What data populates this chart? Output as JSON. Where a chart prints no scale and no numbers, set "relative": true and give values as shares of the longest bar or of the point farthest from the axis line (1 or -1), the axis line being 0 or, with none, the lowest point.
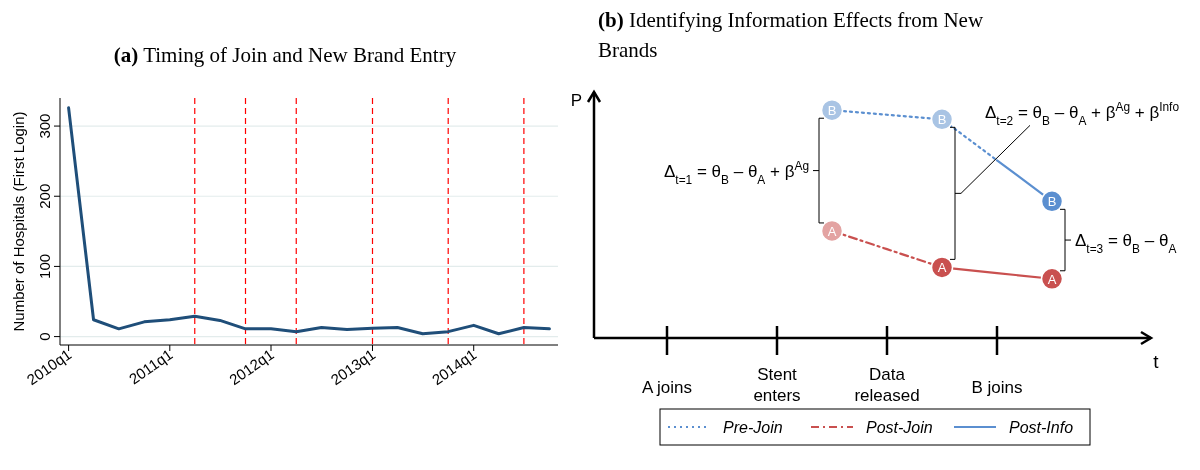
{
  "chart_data": [
    {
      "type": "line",
      "title": "(a) Timing of Join and New Brand Entry",
      "ylabel": "Number of Hospitals (First Login)",
      "x": [
        "2010-01",
        "2010-04",
        "2010-07",
        "2010-10",
        "2011-01",
        "2011-04",
        "2011-07",
        "2011-10",
        "2012-01",
        "2012-04",
        "2012-07",
        "2012-10",
        "2013-01",
        "2013-04",
        "2013-07",
        "2013-10",
        "2014-01",
        "2014-04",
        "2014-07",
        "2014-10"
      ],
      "series": [
        {
          "color": "#1f4e79",
          "values": [
            326,
            24,
            11,
            21,
            24,
            29,
            23,
            11,
            11,
            7,
            13,
            10,
            12,
            13,
            4,
            7,
            16,
            4,
            13,
            11
          ]
        }
      ],
      "xlim": [
        "2009-12",
        "2014-11"
      ],
      "xticks": [
        {
          "value": "2010-01",
          "label": "2010q1"
        },
        {
          "value": "2011-01",
          "label": "2011q1"
        },
        {
          "value": "2012-01",
          "label": "2012q1"
        },
        {
          "value": "2013-01",
          "label": "2013q1"
        },
        {
          "value": "2014-01",
          "label": "2014q1"
        }
      ],
      "ylim": [
        -12,
        340
      ],
      "yticks": [
        0,
        100,
        200,
        300
      ],
      "grid": "y",
      "legend": false,
      "marker": "none",
      "line_style": "solid",
      "ref_lines": [
        {
          "axis": "x",
          "value": "2011-04",
          "color": "#ff0000",
          "line_style": "dashed"
        },
        {
          "axis": "x",
          "value": "2011-10",
          "color": "#ff0000",
          "line_style": "dashed"
        },
        {
          "axis": "x",
          "value": "2012-04",
          "color": "#ff0000",
          "line_style": "dashed"
        },
        {
          "axis": "x",
          "value": "2013-01",
          "color": "#ff0000",
          "line_style": "dashed"
        },
        {
          "axis": "x",
          "value": "2013-10",
          "color": "#ff0000",
          "line_style": "dashed"
        },
        {
          "axis": "x",
          "value": "2014-07",
          "color": "#ff0000",
          "line_style": "dashed"
        }
      ]
    },
    {
      "type": "line",
      "title": "(b) Identifying Information Effects from New Brands",
      "xlabel": "t",
      "ylabel": "P",
      "relative": true,
      "tick_labels": "x",
      "legend": "bottom",
      "grid": false,
      "categories": [
        "A joins",
        null,
        "Stent\nenters",
        null,
        "Data\nreleased",
        null,
        "B joins",
        null
      ],
      "series": [
        {
          "name": "Pre-Join",
          "color": "#5b8fd0",
          "line_style": "dotted",
          "marker": "none",
          "values": [
            null,
            null,
            null,
            1,
            0.98,
            0.96,
            0.78,
            null
          ]
        },
        {
          "name": "Post-Join",
          "color": "#c9504f",
          "line_style": "dashdot",
          "marker": "none",
          "values": [
            null,
            null,
            null,
            0.47,
            0.39,
            0.31,
            null,
            null
          ]
        },
        {
          "name": "Post-Info",
          "color": "#5b8fd0",
          "line_style": "solid",
          "marker": "none",
          "values": [
            null,
            null,
            null,
            null,
            null,
            null,
            0.78,
            0.6
          ]
        },
        {
          "color": "#c9504f",
          "line_style": "solid",
          "marker": "none",
          "values": [
            null,
            null,
            null,
            null,
            null,
            0.31,
            0.285,
            0.26
          ]
        },
        {
          "type": "scatter",
          "marker": "circle",
          "values": [
            null,
            null,
            null,
            1,
            null,
            0.96,
            null,
            0.6
          ],
          "colors": [
            null,
            null,
            null,
            "#a9c4e4",
            null,
            "#a9c4e4",
            null,
            "#5b8fd0"
          ]
        },
        {
          "type": "scatter",
          "marker": "circle",
          "values": [
            null,
            null,
            null,
            0.47,
            null,
            0.31,
            null,
            0.26
          ],
          "colors": [
            null,
            null,
            null,
            "#e3a3a2",
            null,
            "#c9504f",
            null,
            "#c9504f"
          ]
        }
      ],
      "annotations": [
        "Δ$_{t=1}$ = θ$_{B}$ – θ$_{A}$ + β$^{Ag}$",
        "Δ$_{t=2}$ = θ$_{B}$ – θ$_{A}$ + β$^{Ag}$ + β$^{Info}$",
        "Δ$_{t=3}$ = θ$_{B}$ – θ$_{A}$",
        "B",
        "B",
        "B",
        "A",
        "A",
        "A"
      ]
    }
  ]
}
